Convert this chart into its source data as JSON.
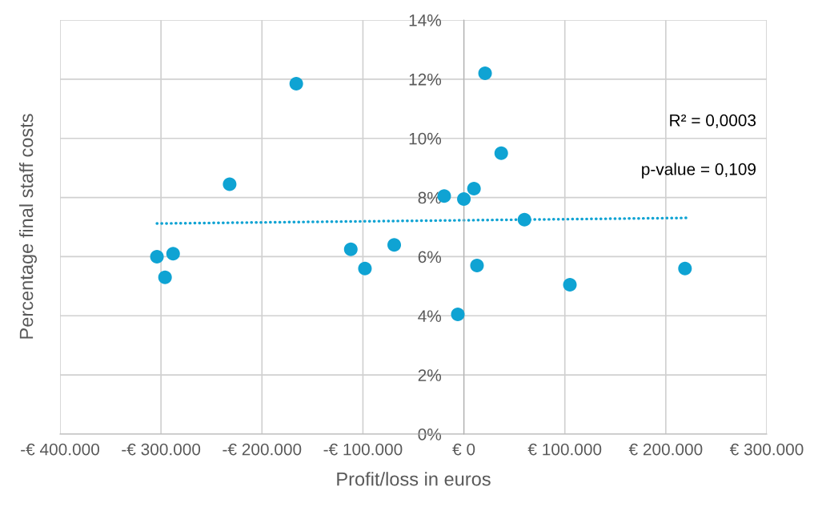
{
  "chart_data": {
    "type": "scatter",
    "xlabel": "Profit/loss in euros",
    "ylabel": "Percentage final staff costs",
    "annotations": [
      "R² = 0,0003",
      "p-value = 0,109"
    ],
    "series": [
      {
        "type": "scatter",
        "color": "#0fa3d3",
        "marker": "circle",
        "x": [
          -304000,
          -296000,
          -288000,
          -232000,
          -166000,
          -112000,
          -98000,
          -69000,
          -19500,
          -6000,
          0,
          10000,
          13000,
          21000,
          37000,
          60000,
          105000,
          219000
        ],
        "values": [
          6.0,
          5.3,
          6.1,
          8.45,
          11.85,
          6.25,
          5.6,
          6.4,
          8.05,
          4.05,
          7.95,
          8.3,
          5.7,
          12.2,
          9.5,
          7.25,
          5.05,
          5.6
        ]
      },
      {
        "type": "line",
        "color": "#0fa3d3",
        "line_style": "dotted",
        "marker": "none",
        "x": [
          -304000,
          220000
        ],
        "values": [
          7.12,
          7.31
        ]
      }
    ],
    "xlim": [
      -400000,
      300000
    ],
    "xticks": [
      {
        "value": -400000,
        "label": "-€ 400.000"
      },
      {
        "value": -300000,
        "label": "-€ 300.000"
      },
      {
        "value": -200000,
        "label": "-€ 200.000"
      },
      {
        "value": -100000,
        "label": "-€ 100.000"
      },
      {
        "value": 0,
        "label": "€ 0"
      },
      {
        "value": 100000,
        "label": "€ 100.000"
      },
      {
        "value": 200000,
        "label": "€ 200.000"
      },
      {
        "value": 300000,
        "label": "€ 300.000"
      }
    ],
    "ylim": [
      0,
      14
    ],
    "yticks": [
      {
        "value": 0,
        "label": "0%"
      },
      {
        "value": 2,
        "label": "2%"
      },
      {
        "value": 4,
        "label": "4%"
      },
      {
        "value": 6,
        "label": "6%"
      },
      {
        "value": 8,
        "label": "8%"
      },
      {
        "value": 10,
        "label": "10%"
      },
      {
        "value": 12,
        "label": "12%"
      },
      {
        "value": 14,
        "label": "14%"
      }
    ],
    "grid": true
  }
}
